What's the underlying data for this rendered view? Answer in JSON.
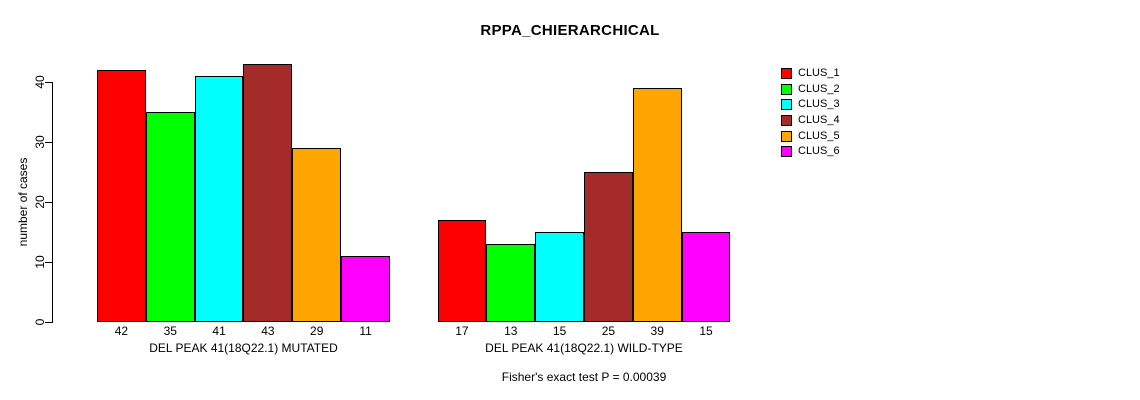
{
  "chart_data": {
    "type": "bar",
    "title": "RPPA_CHIERARCHICAL",
    "ylabel": "number of cases",
    "xlabel": "",
    "ylim": [
      0,
      43
    ],
    "yticks": [
      0,
      10,
      20,
      30,
      40
    ],
    "grid": false,
    "legend_position": "right",
    "bar_value_labels": true,
    "categories": [
      "DEL PEAK 41(18Q22.1) MUTATED",
      "DEL PEAK 41(18Q22.1) WILD-TYPE"
    ],
    "series": [
      {
        "name": "CLUS_1",
        "color": "#FF0000",
        "values": [
          42,
          17
        ]
      },
      {
        "name": "CLUS_2",
        "color": "#00FF00",
        "values": [
          35,
          13
        ]
      },
      {
        "name": "CLUS_3",
        "color": "#00FFFF",
        "values": [
          41,
          15
        ]
      },
      {
        "name": "CLUS_4",
        "color": "#A52A2A",
        "values": [
          43,
          25
        ]
      },
      {
        "name": "CLUS_5",
        "color": "#FFA500",
        "values": [
          29,
          39
        ]
      },
      {
        "name": "CLUS_6",
        "color": "#FF00FF",
        "values": [
          11,
          15
        ]
      }
    ],
    "annotation": "Fisher's exact test P = 0.00039"
  }
}
